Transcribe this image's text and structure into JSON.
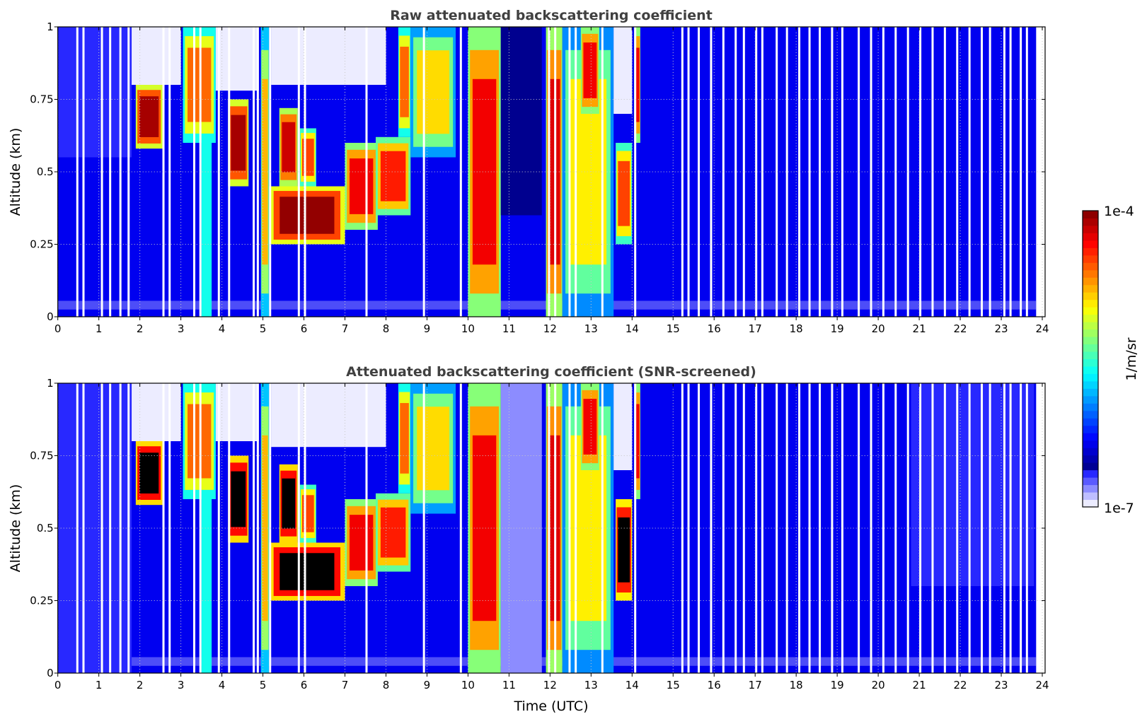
{
  "chart_data": [
    {
      "type": "heatmap",
      "title": "Raw attenuated backscattering coefficient",
      "xlabel": "",
      "ylabel": "Altitude (km)",
      "xlim": [
        0,
        24
      ],
      "ylim": [
        0,
        1
      ],
      "xticks": [
        "0",
        "1",
        "2",
        "3",
        "4",
        "5",
        "6",
        "7",
        "8",
        "9",
        "10",
        "11",
        "12",
        "13",
        "14",
        "15",
        "16",
        "17",
        "18",
        "19",
        "20",
        "21",
        "22",
        "23",
        "24"
      ],
      "yticks": [
        "0",
        "0.25",
        "0.5",
        "0.75",
        "1"
      ],
      "grid": true,
      "screened": false,
      "data_end_hour": 23.85,
      "background_log10": -6.35,
      "features": [
        {
          "t": [
            0,
            1.8
          ],
          "z": [
            0.55,
            1
          ],
          "log": -6.7
        },
        {
          "t": [
            1.8,
            3.0
          ],
          "z": [
            0.8,
            1
          ],
          "log": -7.0
        },
        {
          "t": [
            1.9,
            2.55
          ],
          "z": [
            0.58,
            0.8
          ],
          "log": -4.1
        },
        {
          "t": [
            3.05,
            3.85
          ],
          "z": [
            0.6,
            1
          ],
          "log": -4.6
        },
        {
          "t": [
            3.5,
            3.75
          ],
          "z": [
            0,
            0.6
          ],
          "log": -5.6
        },
        {
          "t": [
            3.85,
            4.9
          ],
          "z": [
            0.78,
            1
          ],
          "log": -7.0
        },
        {
          "t": [
            4.15,
            4.65
          ],
          "z": [
            0.45,
            0.75
          ],
          "log": -4.1
        },
        {
          "t": [
            4.95,
            5.15
          ],
          "z": [
            0,
            1
          ],
          "log": -4.8
        },
        {
          "t": [
            5.15,
            7.0
          ],
          "z": [
            0.25,
            0.45
          ],
          "log": -4.05
        },
        {
          "t": [
            5.4,
            5.85
          ],
          "z": [
            0.45,
            0.72
          ],
          "log": -4.2
        },
        {
          "t": [
            5.9,
            6.3
          ],
          "z": [
            0.45,
            0.65
          ],
          "log": -4.5
        },
        {
          "t": [
            5.2,
            8.0
          ],
          "z": [
            0.8,
            1
          ],
          "log": -7.0
        },
        {
          "t": [
            7.0,
            7.8
          ],
          "z": [
            0.3,
            0.6
          ],
          "log": -4.3
        },
        {
          "t": [
            7.75,
            8.6
          ],
          "z": [
            0.35,
            0.62
          ],
          "log": -4.4
        },
        {
          "t": [
            8.3,
            8.6
          ],
          "z": [
            0.62,
            1
          ],
          "log": -4.6
        },
        {
          "t": [
            8.6,
            9.7
          ],
          "z": [
            0.55,
            1
          ],
          "log": -4.9
        },
        {
          "t": [
            10.0,
            10.8
          ],
          "z": [
            0,
            1
          ],
          "log": -4.3
        },
        {
          "t": [
            10.8,
            11.8
          ],
          "z": [
            0.35,
            1
          ],
          "log": -6.6
        },
        {
          "t": [
            11.9,
            12.3
          ],
          "z": [
            0,
            1
          ],
          "log": -4.25
        },
        {
          "t": [
            12.3,
            13.55
          ],
          "z": [
            0,
            1
          ],
          "log": -4.95
        },
        {
          "t": [
            12.75,
            13.2
          ],
          "z": [
            0.7,
            1
          ],
          "log": -4.3
        },
        {
          "t": [
            13.55,
            14.0
          ],
          "z": [
            0.7,
            1
          ],
          "log": -7.0
        },
        {
          "t": [
            13.6,
            14.0
          ],
          "z": [
            0.25,
            0.6
          ],
          "log": -4.5
        },
        {
          "t": [
            14.05,
            14.2
          ],
          "z": [
            0.6,
            1
          ],
          "log": -4.3
        }
      ],
      "clear_columns_hours": [
        0.45,
        0.6,
        1.05,
        1.25,
        1.5,
        1.7,
        2.55,
        2.7,
        3.3,
        3.45,
        3.9,
        4.15,
        4.75,
        4.85,
        5.15,
        5.85,
        6.0,
        7.5,
        8.9,
        9.8,
        11.95,
        12.1,
        12.45,
        12.6,
        13.25,
        14.05,
        15.2,
        15.35,
        15.6,
        15.9,
        16.2,
        16.5,
        16.7,
        17.0,
        17.15,
        17.5,
        17.75,
        18.05,
        18.3,
        18.55,
        18.85,
        19.1,
        19.5,
        19.8,
        20.1,
        20.4,
        20.7,
        21.0,
        21.3,
        21.6,
        21.9,
        22.2,
        22.5,
        22.7,
        23.05,
        23.2,
        23.45,
        23.6
      ]
    },
    {
      "type": "heatmap",
      "title": "Attenuated backscattering coefficient (SNR-screened)",
      "xlabel": "Time (UTC)",
      "ylabel": "Altitude (km)",
      "xlim": [
        0,
        24
      ],
      "ylim": [
        0,
        1
      ],
      "xticks": [
        "0",
        "1",
        "2",
        "3",
        "4",
        "5",
        "6",
        "7",
        "8",
        "9",
        "10",
        "11",
        "12",
        "13",
        "14",
        "15",
        "16",
        "17",
        "18",
        "19",
        "20",
        "21",
        "22",
        "23",
        "24"
      ],
      "yticks": [
        "0",
        "0.25",
        "0.5",
        "0.75",
        "1"
      ],
      "grid": true,
      "screened": true,
      "data_end_hour": 23.85,
      "background_log10": -6.35,
      "features": [
        {
          "t": [
            0,
            1.8
          ],
          "z": [
            0,
            1
          ],
          "log": -6.7
        },
        {
          "t": [
            1.8,
            3.0
          ],
          "z": [
            0.8,
            1
          ],
          "log": -7.2
        },
        {
          "t": [
            1.9,
            2.55
          ],
          "z": [
            0.58,
            0.8
          ],
          "log": -3.9
        },
        {
          "t": [
            3.05,
            3.85
          ],
          "z": [
            0.6,
            1
          ],
          "log": -4.6
        },
        {
          "t": [
            3.5,
            3.75
          ],
          "z": [
            0,
            0.6
          ],
          "log": -5.6
        },
        {
          "t": [
            3.85,
            4.9
          ],
          "z": [
            0.8,
            1
          ],
          "log": -7.2
        },
        {
          "t": [
            4.15,
            4.65
          ],
          "z": [
            0.45,
            0.75
          ],
          "log": -3.9
        },
        {
          "t": [
            4.95,
            5.15
          ],
          "z": [
            0,
            1
          ],
          "log": -4.8
        },
        {
          "t": [
            5.15,
            7.0
          ],
          "z": [
            0.25,
            0.45
          ],
          "log": -3.9
        },
        {
          "t": [
            5.4,
            5.85
          ],
          "z": [
            0.45,
            0.72
          ],
          "log": -3.9
        },
        {
          "t": [
            5.9,
            6.3
          ],
          "z": [
            0.45,
            0.65
          ],
          "log": -4.5
        },
        {
          "t": [
            5.2,
            8.0
          ],
          "z": [
            0.78,
            1
          ],
          "log": -7.2
        },
        {
          "t": [
            7.0,
            7.8
          ],
          "z": [
            0.3,
            0.6
          ],
          "log": -4.3
        },
        {
          "t": [
            7.75,
            8.6
          ],
          "z": [
            0.35,
            0.62
          ],
          "log": -4.4
        },
        {
          "t": [
            8.3,
            8.6
          ],
          "z": [
            0.62,
            1
          ],
          "log": -4.6
        },
        {
          "t": [
            8.6,
            9.7
          ],
          "z": [
            0.55,
            1
          ],
          "log": -4.9
        },
        {
          "t": [
            10.0,
            10.8
          ],
          "z": [
            0,
            1
          ],
          "log": -4.3
        },
        {
          "t": [
            10.8,
            11.8
          ],
          "z": [
            0,
            1
          ],
          "log": -6.8
        },
        {
          "t": [
            11.9,
            12.3
          ],
          "z": [
            0,
            1
          ],
          "log": -4.25
        },
        {
          "t": [
            12.3,
            13.55
          ],
          "z": [
            0,
            1
          ],
          "log": -4.95
        },
        {
          "t": [
            12.75,
            13.2
          ],
          "z": [
            0.7,
            1
          ],
          "log": -4.3
        },
        {
          "t": [
            13.55,
            14.0
          ],
          "z": [
            0.7,
            1
          ],
          "log": -7.2
        },
        {
          "t": [
            13.6,
            14.0
          ],
          "z": [
            0.25,
            0.6
          ],
          "log": -3.95
        },
        {
          "t": [
            14.05,
            14.2
          ],
          "z": [
            0.6,
            1
          ],
          "log": -4.3
        },
        {
          "t": [
            20.8,
            23.8
          ],
          "z": [
            0.3,
            1
          ],
          "log": -6.7
        }
      ],
      "clear_columns_hours": [
        0.45,
        0.6,
        1.05,
        1.25,
        1.5,
        1.7,
        2.55,
        2.7,
        3.3,
        3.45,
        3.9,
        4.15,
        4.75,
        4.85,
        5.15,
        5.85,
        6.0,
        7.5,
        8.9,
        9.8,
        11.95,
        12.1,
        12.45,
        12.6,
        13.25,
        14.05,
        15.2,
        15.35,
        15.6,
        15.9,
        16.2,
        16.5,
        16.7,
        17.0,
        17.15,
        17.5,
        17.75,
        18.05,
        18.3,
        18.55,
        18.85,
        19.1,
        19.5,
        19.8,
        20.1,
        20.4,
        20.7,
        21.0,
        21.3,
        21.6,
        21.9,
        22.2,
        22.5,
        22.7,
        23.05,
        23.2,
        23.45,
        23.6
      ]
    }
  ],
  "colorbar": {
    "label": "1/m/sr",
    "min_label": "1e-7",
    "max_label": "1e-4",
    "log10_range": [
      -7,
      -4
    ],
    "steps": 40,
    "colormap": "jet (low end lavender)"
  },
  "colors": {
    "frame": "#000000",
    "title": "#404040",
    "grid": "#c8c8c8",
    "saturated": "#000000"
  }
}
